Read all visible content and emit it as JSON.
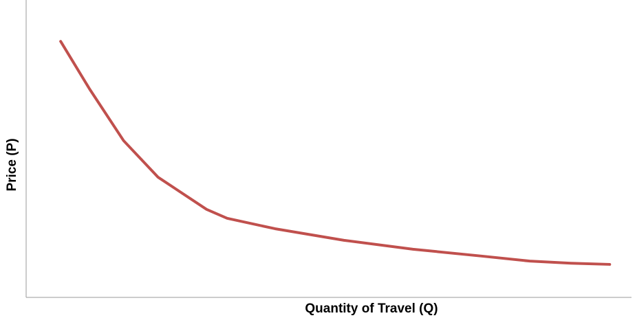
{
  "chart_data": {
    "type": "line",
    "x_label": "Quantity of Travel (Q)",
    "y_label": "Price (P)",
    "x": [
      5.7,
      10.5,
      16.1,
      21.8,
      29.8,
      33.2,
      41.1,
      52.5,
      63.9,
      75.2,
      83.2,
      90.0,
      96.4
    ],
    "series": [
      {
        "color": "#c0504d",
        "values": [
          86.1,
          70.0,
          52.7,
          40.4,
          29.6,
          26.6,
          23.1,
          19.2,
          16.2,
          13.9,
          12.2,
          11.5,
          11.1
        ]
      }
    ],
    "xlim": [
      0,
      100
    ],
    "ylim": [
      0,
      100
    ]
  }
}
